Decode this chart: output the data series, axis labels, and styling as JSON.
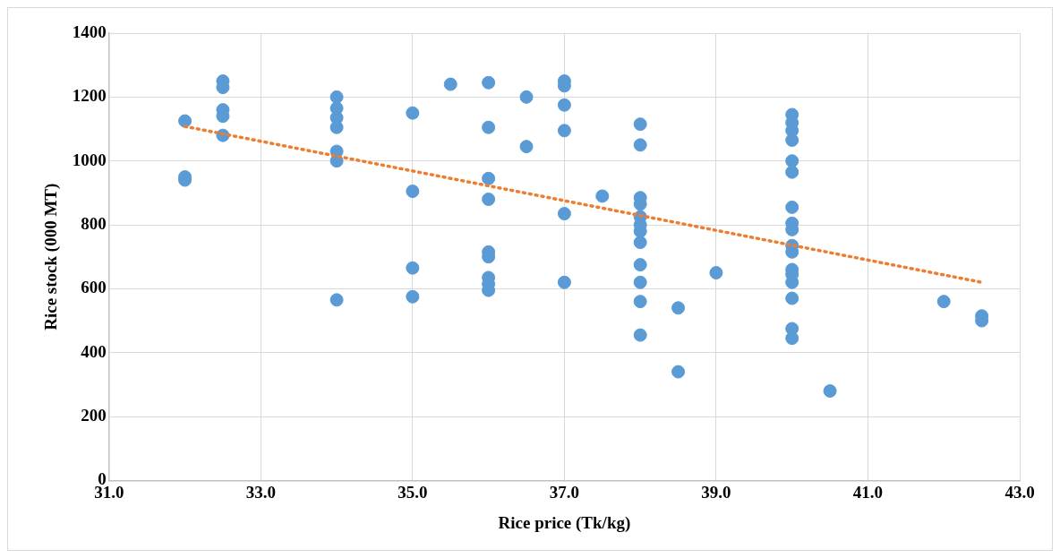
{
  "chart_data": {
    "type": "scatter",
    "xlabel": "Rice price (Tk/kg)",
    "ylabel": "Rice stock (000 MT)",
    "xlim": [
      31,
      43
    ],
    "xticks": [
      {
        "value": 31,
        "label": "31.0"
      },
      {
        "value": 33,
        "label": "33.0"
      },
      {
        "value": 35,
        "label": "35.0"
      },
      {
        "value": 37,
        "label": "37.0"
      },
      {
        "value": 39,
        "label": "39.0"
      },
      {
        "value": 41,
        "label": "41.0"
      },
      {
        "value": 43,
        "label": "43.0"
      }
    ],
    "ylim": [
      0,
      1400
    ],
    "yticks": [
      0,
      200,
      400,
      600,
      800,
      1000,
      1200,
      1400
    ],
    "grid": true,
    "legend": false,
    "series": [
      {
        "color": "#5b9bd5",
        "marker": "circle",
        "x": [
          32,
          32,
          32,
          32.5,
          32.5,
          32.5,
          32.5,
          32.5,
          34,
          34,
          34,
          34,
          34,
          34,
          34,
          35,
          35,
          35,
          35,
          35.5,
          36,
          36,
          36,
          36,
          36,
          36,
          36,
          36,
          36,
          36.5,
          36.5,
          37,
          37,
          37,
          37,
          37,
          37,
          37.5,
          38,
          38,
          38,
          38,
          38,
          38,
          38,
          38,
          38,
          38,
          38,
          38,
          38.5,
          38.5,
          39,
          40,
          40,
          40,
          40,
          40,
          40,
          40,
          40,
          40,
          40,
          40,
          40,
          40,
          40,
          40,
          40,
          40,
          40.5,
          42,
          42.5,
          42.5
        ],
        "values": [
          1125,
          950,
          940,
          1250,
          1230,
          1160,
          1140,
          1080,
          1200,
          1165,
          1135,
          1105,
          1030,
          1000,
          565,
          1150,
          905,
          665,
          575,
          1240,
          1245,
          1105,
          945,
          880,
          715,
          700,
          635,
          615,
          595,
          1200,
          1045,
          1250,
          1235,
          1175,
          1095,
          835,
          620,
          890,
          1115,
          1050,
          885,
          865,
          825,
          800,
          780,
          745,
          675,
          620,
          560,
          455,
          540,
          340,
          650,
          1145,
          1120,
          1095,
          1065,
          1000,
          965,
          855,
          805,
          785,
          735,
          715,
          660,
          645,
          620,
          570,
          475,
          445,
          280,
          560,
          515,
          500
        ]
      },
      {
        "type": "line",
        "color": "#ed7d31",
        "marker": "none",
        "line_style": "dotted",
        "x": [
          32,
          42.5
        ],
        "values": [
          1108,
          620
        ]
      }
    ]
  }
}
